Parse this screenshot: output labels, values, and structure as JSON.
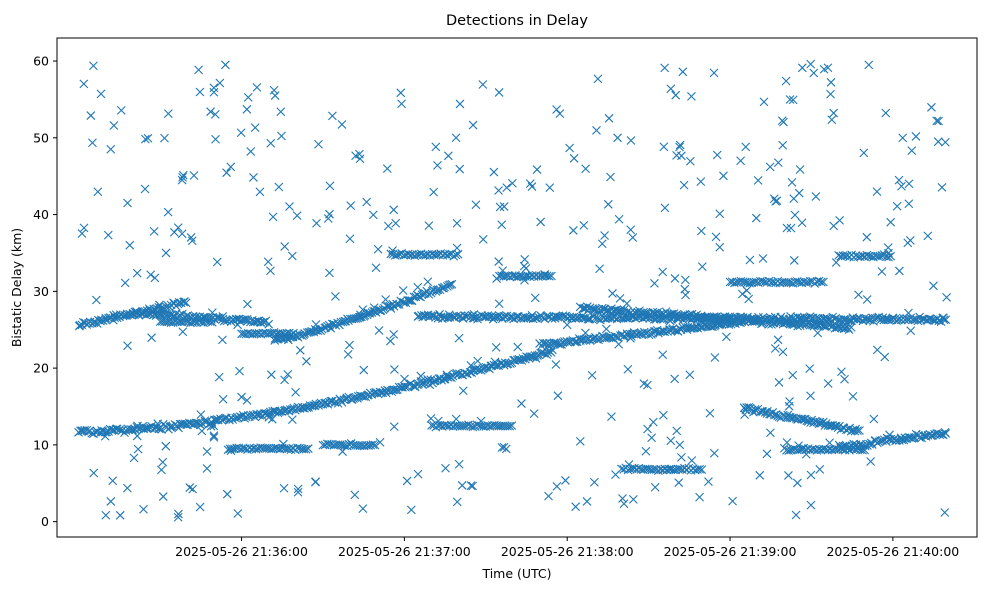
{
  "chart_data": {
    "type": "scatter",
    "title": "Detections in Delay",
    "xlabel": "Time (UTC)",
    "ylabel": "Bistatic Delay (km)",
    "marker": "x",
    "marker_color": "#1f77b4",
    "xlim": [
      "2025-05-26 21:34:52",
      "2025-05-26 21:40:31"
    ],
    "ylim": [
      -2,
      63
    ],
    "x_ticks": [
      "2025-05-26 21:36:00",
      "2025-05-26 21:37:00",
      "2025-05-26 21:38:00",
      "2025-05-26 21:39:00",
      "2025-05-26 21:40:00"
    ],
    "y_ticks": [
      0,
      10,
      20,
      30,
      40,
      50,
      60
    ],
    "grid": false,
    "legend": "none",
    "data_start": "2025-05-26 21:35:00",
    "data_end": "2025-05-26 21:40:20",
    "tracks": [
      {
        "start": "2025-05-26 21:35:00",
        "end": "2025-05-26 21:37:55",
        "delay_start": 11.7,
        "delay_end": 22.3,
        "curve": 1.6
      },
      {
        "start": "2025-05-26 21:36:12",
        "end": "2025-05-26 21:37:18",
        "delay_start": 23.6,
        "delay_end": 31.0,
        "curve": 1.2
      },
      {
        "start": "2025-05-26 21:35:00",
        "end": "2025-05-26 21:35:40",
        "delay_start": 25.6,
        "delay_end": 28.6,
        "curve": 1.0
      },
      {
        "start": "2025-05-26 21:35:20",
        "end": "2025-05-26 21:36:10",
        "delay_start": 27.2,
        "delay_end": 26.0,
        "curve": 1.0
      },
      {
        "start": "2025-05-26 21:37:05",
        "end": "2025-05-26 21:40:20",
        "delay_start": 26.7,
        "delay_end": 26.3,
        "curve": 1.0
      },
      {
        "start": "2025-05-26 21:37:50",
        "end": "2025-05-26 21:39:05",
        "delay_start": 23.0,
        "delay_end": 26.0,
        "curve": 1.0
      },
      {
        "start": "2025-05-26 21:38:05",
        "end": "2025-05-26 21:39:45",
        "delay_start": 27.8,
        "delay_end": 25.2,
        "curve": 1.0
      },
      {
        "start": "2025-05-26 21:39:05",
        "end": "2025-05-26 21:39:48",
        "delay_start": 14.8,
        "delay_end": 11.8,
        "curve": 1.0
      },
      {
        "start": "2025-05-26 21:39:40",
        "end": "2025-05-26 21:40:20",
        "delay_start": 9.7,
        "delay_end": 11.6,
        "curve": 1.0
      }
    ],
    "segments": [
      {
        "start": "2025-05-26 21:36:55",
        "end": "2025-05-26 21:37:20",
        "delay": 34.8
      },
      {
        "start": "2025-05-26 21:37:35",
        "end": "2025-05-26 21:37:55",
        "delay": 32.0
      },
      {
        "start": "2025-05-26 21:39:00",
        "end": "2025-05-26 21:39:35",
        "delay": 31.2
      },
      {
        "start": "2025-05-26 21:39:40",
        "end": "2025-05-26 21:40:00",
        "delay": 34.6
      },
      {
        "start": "2025-05-26 21:38:20",
        "end": "2025-05-26 21:38:50",
        "delay": 6.8
      },
      {
        "start": "2025-05-26 21:35:55",
        "end": "2025-05-26 21:36:25",
        "delay": 9.5
      },
      {
        "start": "2025-05-26 21:36:30",
        "end": "2025-05-26 21:36:50",
        "delay": 10.0
      },
      {
        "start": "2025-05-26 21:39:20",
        "end": "2025-05-26 21:39:50",
        "delay": 9.4
      },
      {
        "start": "2025-05-26 21:37:10",
        "end": "2025-05-26 21:37:40",
        "delay": 12.5
      },
      {
        "start": "2025-05-26 21:35:30",
        "end": "2025-05-26 21:35:50",
        "delay": 26.0
      },
      {
        "start": "2025-05-26 21:36:00",
        "end": "2025-05-26 21:36:20",
        "delay": 24.5
      }
    ],
    "noise_points": 460
  }
}
